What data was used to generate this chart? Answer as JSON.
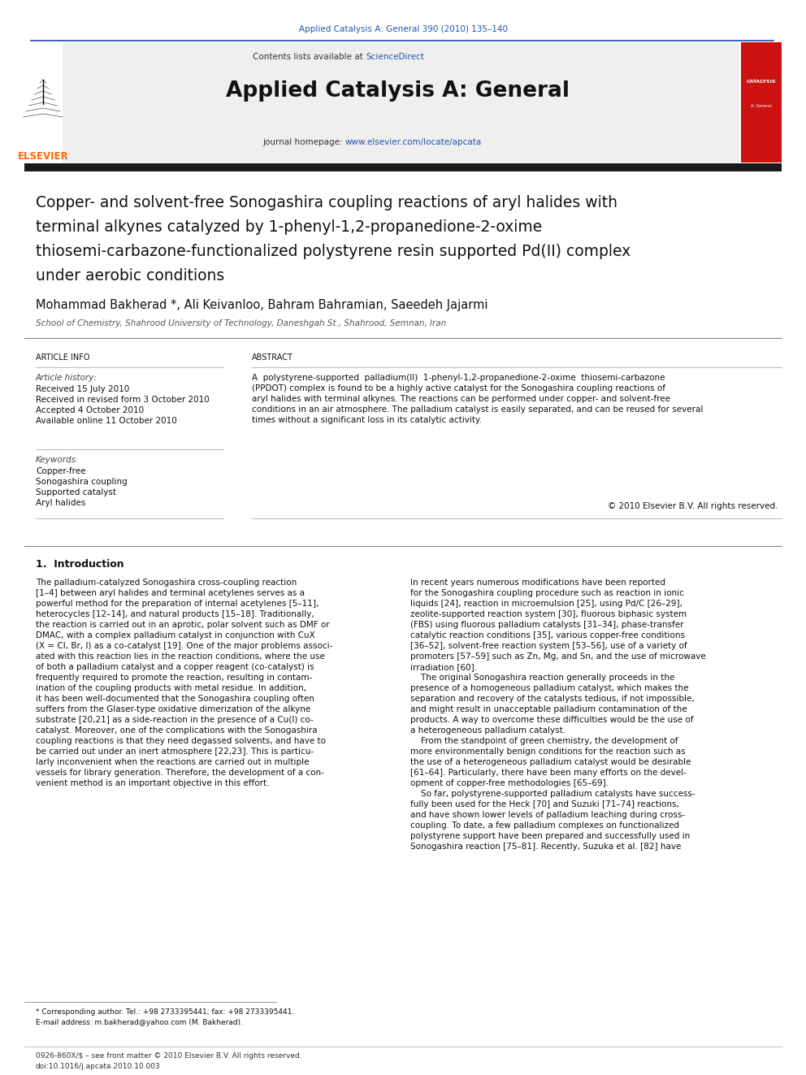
{
  "bg_color": "#ffffff",
  "header_journal_ref": "Applied Catalysis A: General 390 (2010) 135–140",
  "header_journal_ref_color": "#2255aa",
  "journal_name": "Applied Catalysis A: General",
  "sciencedirect_color": "#2255aa",
  "homepage_url_color": "#2255aa",
  "elsevier_color": "#ff6600",
  "header_bg": "#efefef",
  "article_title_lines": [
    "Copper- and solvent-free Sonogashira coupling reactions of aryl halides with",
    "terminal alkynes catalyzed by 1-phenyl-1,2-propanedione-2-oxime",
    "thiosemi-carbazone-functionalized polystyrene resin supported Pd(II) complex",
    "under aerobic conditions"
  ],
  "authors": "Mohammad Bakherad *, Ali Keivanloo, Bahram Bahramian, Saeedeh Jajarmi",
  "affiliation": "School of Chemistry, Shahrood University of Technology, Daneshgah St., Shahrood, Semnan, Iran",
  "article_info_header": "ARTICLE INFO",
  "abstract_header": "ABSTRACT",
  "article_history_label": "Article history:",
  "history_items": [
    "Received 15 July 2010",
    "Received in revised form 3 October 2010",
    "Accepted 4 October 2010",
    "Available online 11 October 2010"
  ],
  "keywords_label": "Keywords:",
  "keywords": [
    "Copper-free",
    "Sonogashira coupling",
    "Supported catalyst",
    "Aryl halides"
  ],
  "abstract_lines": [
    "A  polystyrene-supported  palladium(II)  1-phenyl-1,2-propanedione-2-oxime  thiosemi-carbazone",
    "(PPDOT) complex is found to be a highly active catalyst for the Sonogashira coupling reactions of",
    "aryl halides with terminal alkynes. The reactions can be performed under copper- and solvent-free",
    "conditions in an air atmosphere. The palladium catalyst is easily separated, and can be reused for several",
    "times without a significant loss in its catalytic activity."
  ],
  "copyright_text": "© 2010 Elsevier B.V. All rights reserved.",
  "section1_title": "1.  Introduction",
  "intro_col1_lines": [
    "The palladium-catalyzed Sonogashira cross-coupling reaction",
    "[1–4] between aryl halides and terminal acetylenes serves as a",
    "powerful method for the preparation of internal acetylenes [5–11],",
    "heterocycles [12–14], and natural products [15–18]. Traditionally,",
    "the reaction is carried out in an aprotic, polar solvent such as DMF or",
    "DMAC, with a complex palladium catalyst in conjunction with CuX",
    "(X = Cl, Br, I) as a co-catalyst [19]. One of the major problems associ-",
    "ated with this reaction lies in the reaction conditions, where the use",
    "of both a palladium catalyst and a copper reagent (co-catalyst) is",
    "frequently required to promote the reaction, resulting in contam-",
    "ination of the coupling products with metal residue. In addition,",
    "it has been well-documented that the Sonogashira coupling often",
    "suffers from the Glaser-type oxidative dimerization of the alkyne",
    "substrate [20,21] as a side-reaction in the presence of a Cu(I) co-",
    "catalyst. Moreover, one of the complications with the Sonogashira",
    "coupling reactions is that they need degassed solvents, and have to",
    "be carried out under an inert atmosphere [22,23]. This is particu-",
    "larly inconvenient when the reactions are carried out in multiple",
    "vessels for library generation. Therefore, the development of a con-",
    "venient method is an important objective in this effort."
  ],
  "intro_col2_lines": [
    "In recent years numerous modifications have been reported",
    "for the Sonogashira coupling procedure such as reaction in ionic",
    "liquids [24], reaction in microemulsion [25], using Pd/C [26–29],",
    "zeolite-supported reaction system [30], fluorous biphasic system",
    "(FBS) using fluorous palladium catalysts [31–34], phase-transfer",
    "catalytic reaction conditions [35], various copper-free conditions",
    "[36–52], solvent-free reaction system [53–56], use of a variety of",
    "promoters [57–59] such as Zn, Mg, and Sn, and the use of microwave",
    "irradiation [60].",
    "    The original Sonogashira reaction generally proceeds in the",
    "presence of a homogeneous palladium catalyst, which makes the",
    "separation and recovery of the catalysts tedious, if not impossible,",
    "and might result in unacceptable palladium contamination of the",
    "products. A way to overcome these difficulties would be the use of",
    "a heterogeneous palladium catalyst.",
    "    From the standpoint of green chemistry, the development of",
    "more environmentally benign conditions for the reaction such as",
    "the use of a heterogeneous palladium catalyst would be desirable",
    "[61–64]. Particularly, there have been many efforts on the devel-",
    "opment of copper-free methodologies [65–69].",
    "    So far, polystyrene-supported palladium catalysts have success-",
    "fully been used for the Heck [70] and Suzuki [71–74] reactions,",
    "and have shown lower levels of palladium leaching during cross-",
    "coupling. To date, a few palladium complexes on functionalized",
    "polystyrene support have been prepared and successfully used in",
    "Sonogashira reaction [75–81]. Recently, Suzuka et al. [82] have"
  ],
  "footnote_line1": "* Corresponding author. Tel.: +98 2733395441; fax: +98 2733395441.",
  "footnote_line2": "E-mail address: m.bakherad@yahoo.com (M. Bakherad).",
  "footer_line1": "0926-860X/$ – see front matter © 2010 Elsevier B.V. All rights reserved.",
  "footer_line2": "doi:10.1016/j.apcata.2010.10.003",
  "dark_bar_color": "#1a1a1a",
  "link_color": "#2255aa"
}
